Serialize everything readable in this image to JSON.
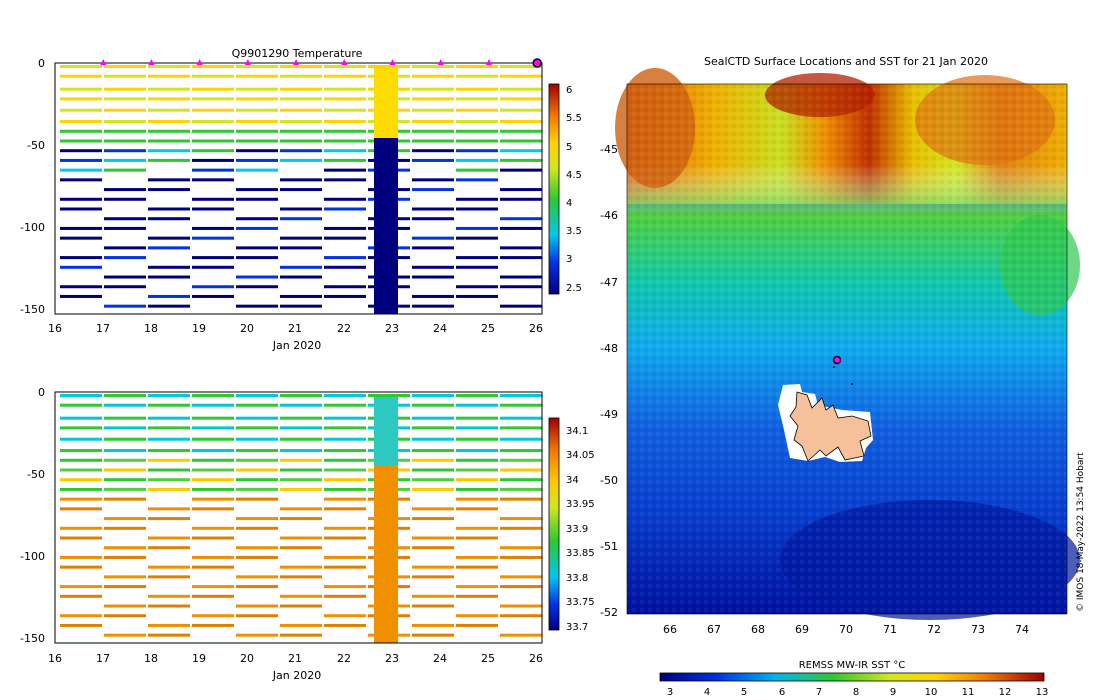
{
  "chart_data": [
    {
      "type": "heatmap",
      "title": "Q9901290  Temperature",
      "xlabel": "Jan 2020",
      "ylabel": "",
      "xticks": [
        "16",
        "17",
        "18",
        "19",
        "20",
        "21",
        "22",
        "23",
        "24",
        "25",
        "26"
      ],
      "yticks": [
        "0",
        "-50",
        "-100",
        "-150"
      ],
      "xlim": [
        16,
        26.1
      ],
      "ylim": [
        -153,
        2
      ],
      "colorbar_ticks": [
        "2.5",
        "3",
        "3.5",
        "4",
        "4.5",
        "5",
        "5.5",
        "6"
      ],
      "colorbar_range": [
        2.3,
        6.2
      ],
      "profile_markers_days": [
        17,
        18,
        19,
        20,
        21,
        22,
        23,
        24,
        25,
        26
      ]
    },
    {
      "type": "heatmap",
      "title": "",
      "xlabel": "Jan 2020",
      "ylabel": "",
      "xticks": [
        "16",
        "17",
        "18",
        "19",
        "20",
        "21",
        "22",
        "23",
        "24",
        "25",
        "26"
      ],
      "yticks": [
        "0",
        "-50",
        "-100",
        "-150"
      ],
      "xlim": [
        16,
        26.1
      ],
      "ylim": [
        -153,
        2
      ],
      "colorbar_ticks": [
        "33.7",
        "33.75",
        "33.8",
        "33.85",
        "33.9",
        "33.95",
        "34",
        "34.05",
        "34.1"
      ],
      "colorbar_range": [
        33.68,
        34.14
      ]
    },
    {
      "type": "heatmap",
      "title": "SealCTD Surface Locations and SST for 21 Jan 2020",
      "xlabel": "",
      "ylabel": "",
      "xticks": [
        "66",
        "67",
        "68",
        "69",
        "70",
        "71",
        "72",
        "73",
        "74"
      ],
      "yticks": [
        "-45",
        "-46",
        "-47",
        "-48",
        "-49",
        "-50",
        "-51",
        "-52"
      ],
      "xlim": [
        65,
        75
      ],
      "ylim": [
        -52.1,
        -44.2
      ],
      "colorbar_label": "REMSS MW-IR SST °C",
      "colorbar_ticks": [
        "3",
        "4",
        "5",
        "6",
        "7",
        "8",
        "9",
        "10",
        "11",
        "12",
        "13"
      ],
      "colorbar_range": [
        2.6,
        13.1
      ],
      "seal_location": {
        "lon": 69.8,
        "lat": -48.2
      }
    }
  ],
  "credit": "© IMOS 18-May-2022 13:54 Hobart"
}
